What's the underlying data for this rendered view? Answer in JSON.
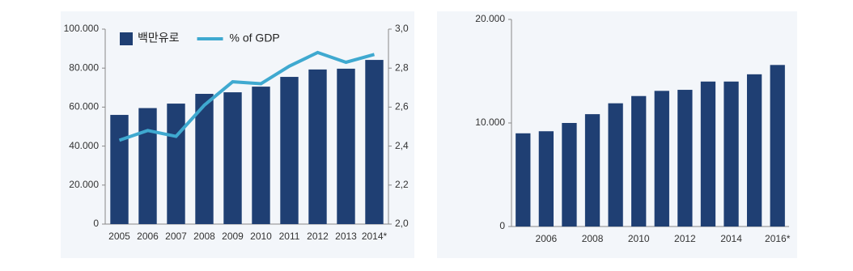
{
  "chart_data": [
    {
      "type": "bar",
      "categories": [
        "2005",
        "2006",
        "2007",
        "2008",
        "2009",
        "2010",
        "2011",
        "2012",
        "2013",
        "2014*"
      ],
      "series": [
        {
          "name": "백만유로",
          "color": "#1f3f73",
          "values": [
            56000,
            59500,
            61800,
            66800,
            67600,
            70500,
            75500,
            79300,
            79700,
            84200
          ]
        },
        {
          "name": "% of GDP",
          "color": "#3fa9d0",
          "type": "line",
          "axis": "y2",
          "values": [
            2.43,
            2.48,
            2.45,
            2.61,
            2.73,
            2.72,
            2.81,
            2.88,
            2.83,
            2.87
          ]
        }
      ],
      "ylim": [
        0,
        100000
      ],
      "yticks": [
        0,
        {
          "value": 20000,
          "label": "20.000"
        },
        {
          "value": 40000,
          "label": "40.000"
        },
        {
          "value": 60000,
          "label": "60.000"
        },
        {
          "value": 80000,
          "label": "80.000"
        },
        {
          "value": 100000,
          "label": "100.000"
        }
      ],
      "y2lim": [
        2.0,
        3.0
      ],
      "y2ticks": [
        {
          "value": 2.0,
          "label": "2,0"
        },
        {
          "value": 2.2,
          "label": "2,2"
        },
        {
          "value": 2.4,
          "label": "2,4"
        },
        {
          "value": 2.6,
          "label": "2,6"
        },
        {
          "value": 2.8,
          "label": "2,8"
        },
        {
          "value": 3.0,
          "label": "3,0"
        }
      ],
      "legend": "top-left"
    },
    {
      "type": "bar",
      "categories": [
        null,
        "2006",
        null,
        "2008",
        null,
        "2010",
        null,
        "2012",
        null,
        "2014",
        null,
        "2016*"
      ],
      "series": [
        {
          "color": "#1f3f73",
          "values": [
            9000,
            9200,
            10000,
            10850,
            11900,
            12600,
            13100,
            13200,
            14000,
            14000,
            14700,
            15600
          ]
        }
      ],
      "ylim": [
        0,
        20000
      ],
      "yticks": [
        0,
        {
          "value": 10000,
          "label": "10.000"
        },
        {
          "value": 20000,
          "label": "20.000"
        }
      ]
    }
  ]
}
